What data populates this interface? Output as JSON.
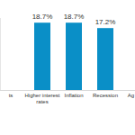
{
  "chart_data": {
    "type": "bar",
    "categories": [
      "ts",
      "Higher interest rates",
      "Inflation",
      "Recession",
      "Ag"
    ],
    "values": [
      null,
      18.7,
      18.7,
      17.2,
      null
    ],
    "value_labels": [
      null,
      "18.7%",
      "18.7%",
      "17.2%",
      null
    ],
    "color": "#0a8fc7",
    "ylim": [
      0,
      20
    ],
    "data_labels": true,
    "tick_labels": "x",
    "grid": false
  }
}
